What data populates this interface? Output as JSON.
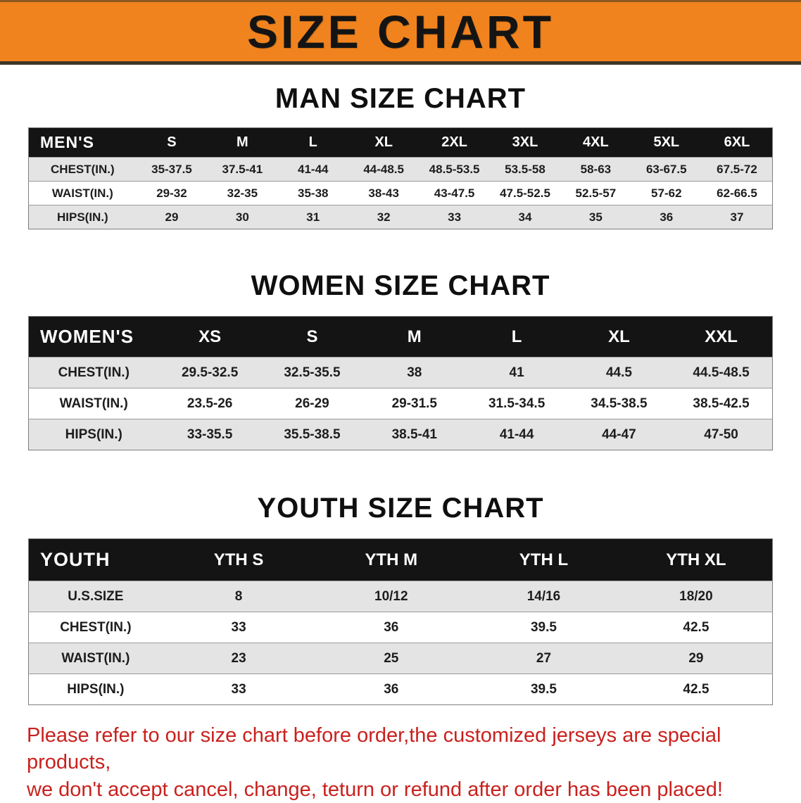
{
  "banner": {
    "title": "SIZE CHART",
    "background_color": "#f0831e"
  },
  "sections": {
    "men": {
      "heading": "MAN SIZE CHART",
      "table": {
        "header_label": "MEN'S",
        "columns": [
          "S",
          "M",
          "L",
          "XL",
          "2XL",
          "3XL",
          "4XL",
          "5XL",
          "6XL"
        ],
        "rows": [
          {
            "label": "CHEST(IN.)",
            "values": [
              "35-37.5",
              "37.5-41",
              "41-44",
              "44-48.5",
              "48.5-53.5",
              "53.5-58",
              "58-63",
              "63-67.5",
              "67.5-72"
            ]
          },
          {
            "label": "WAIST(IN.)",
            "values": [
              "29-32",
              "32-35",
              "35-38",
              "38-43",
              "43-47.5",
              "47.5-52.5",
              "52.5-57",
              "57-62",
              "62-66.5"
            ]
          },
          {
            "label": "HIPS(IN.)",
            "values": [
              "29",
              "30",
              "31",
              "32",
              "33",
              "34",
              "35",
              "36",
              "37"
            ]
          }
        ]
      }
    },
    "women": {
      "heading": "WOMEN SIZE CHART",
      "table": {
        "header_label": "WOMEN'S",
        "columns": [
          "XS",
          "S",
          "M",
          "L",
          "XL",
          "XXL"
        ],
        "rows": [
          {
            "label": "CHEST(IN.)",
            "values": [
              "29.5-32.5",
              "32.5-35.5",
              "38",
              "41",
              "44.5",
              "44.5-48.5"
            ]
          },
          {
            "label": "WAIST(IN.)",
            "values": [
              "23.5-26",
              "26-29",
              "29-31.5",
              "31.5-34.5",
              "34.5-38.5",
              "38.5-42.5"
            ]
          },
          {
            "label": "HIPS(IN.)",
            "values": [
              "33-35.5",
              "35.5-38.5",
              "38.5-41",
              "41-44",
              "44-47",
              "47-50"
            ]
          }
        ]
      }
    },
    "youth": {
      "heading": "YOUTH SIZE CHART",
      "table": {
        "header_label": "YOUTH",
        "columns": [
          "YTH S",
          "YTH M",
          "YTH L",
          "YTH XL"
        ],
        "rows": [
          {
            "label": "U.S.SIZE",
            "values": [
              "8",
              "10/12",
              "14/16",
              "18/20"
            ]
          },
          {
            "label": "CHEST(IN.)",
            "values": [
              "33",
              "36",
              "39.5",
              "42.5"
            ]
          },
          {
            "label": "WAIST(IN.)",
            "values": [
              "23",
              "25",
              "27",
              "29"
            ]
          },
          {
            "label": "HIPS(IN.)",
            "values": [
              "33",
              "36",
              "39.5",
              "42.5"
            ]
          }
        ]
      }
    }
  },
  "disclaimer": {
    "line1": "Please refer to our size chart before order,the customized jerseys are special products,",
    "line2": "we don't accept cancel, change, teturn or refund after order has been placed!",
    "text_color": "#c9211e"
  }
}
